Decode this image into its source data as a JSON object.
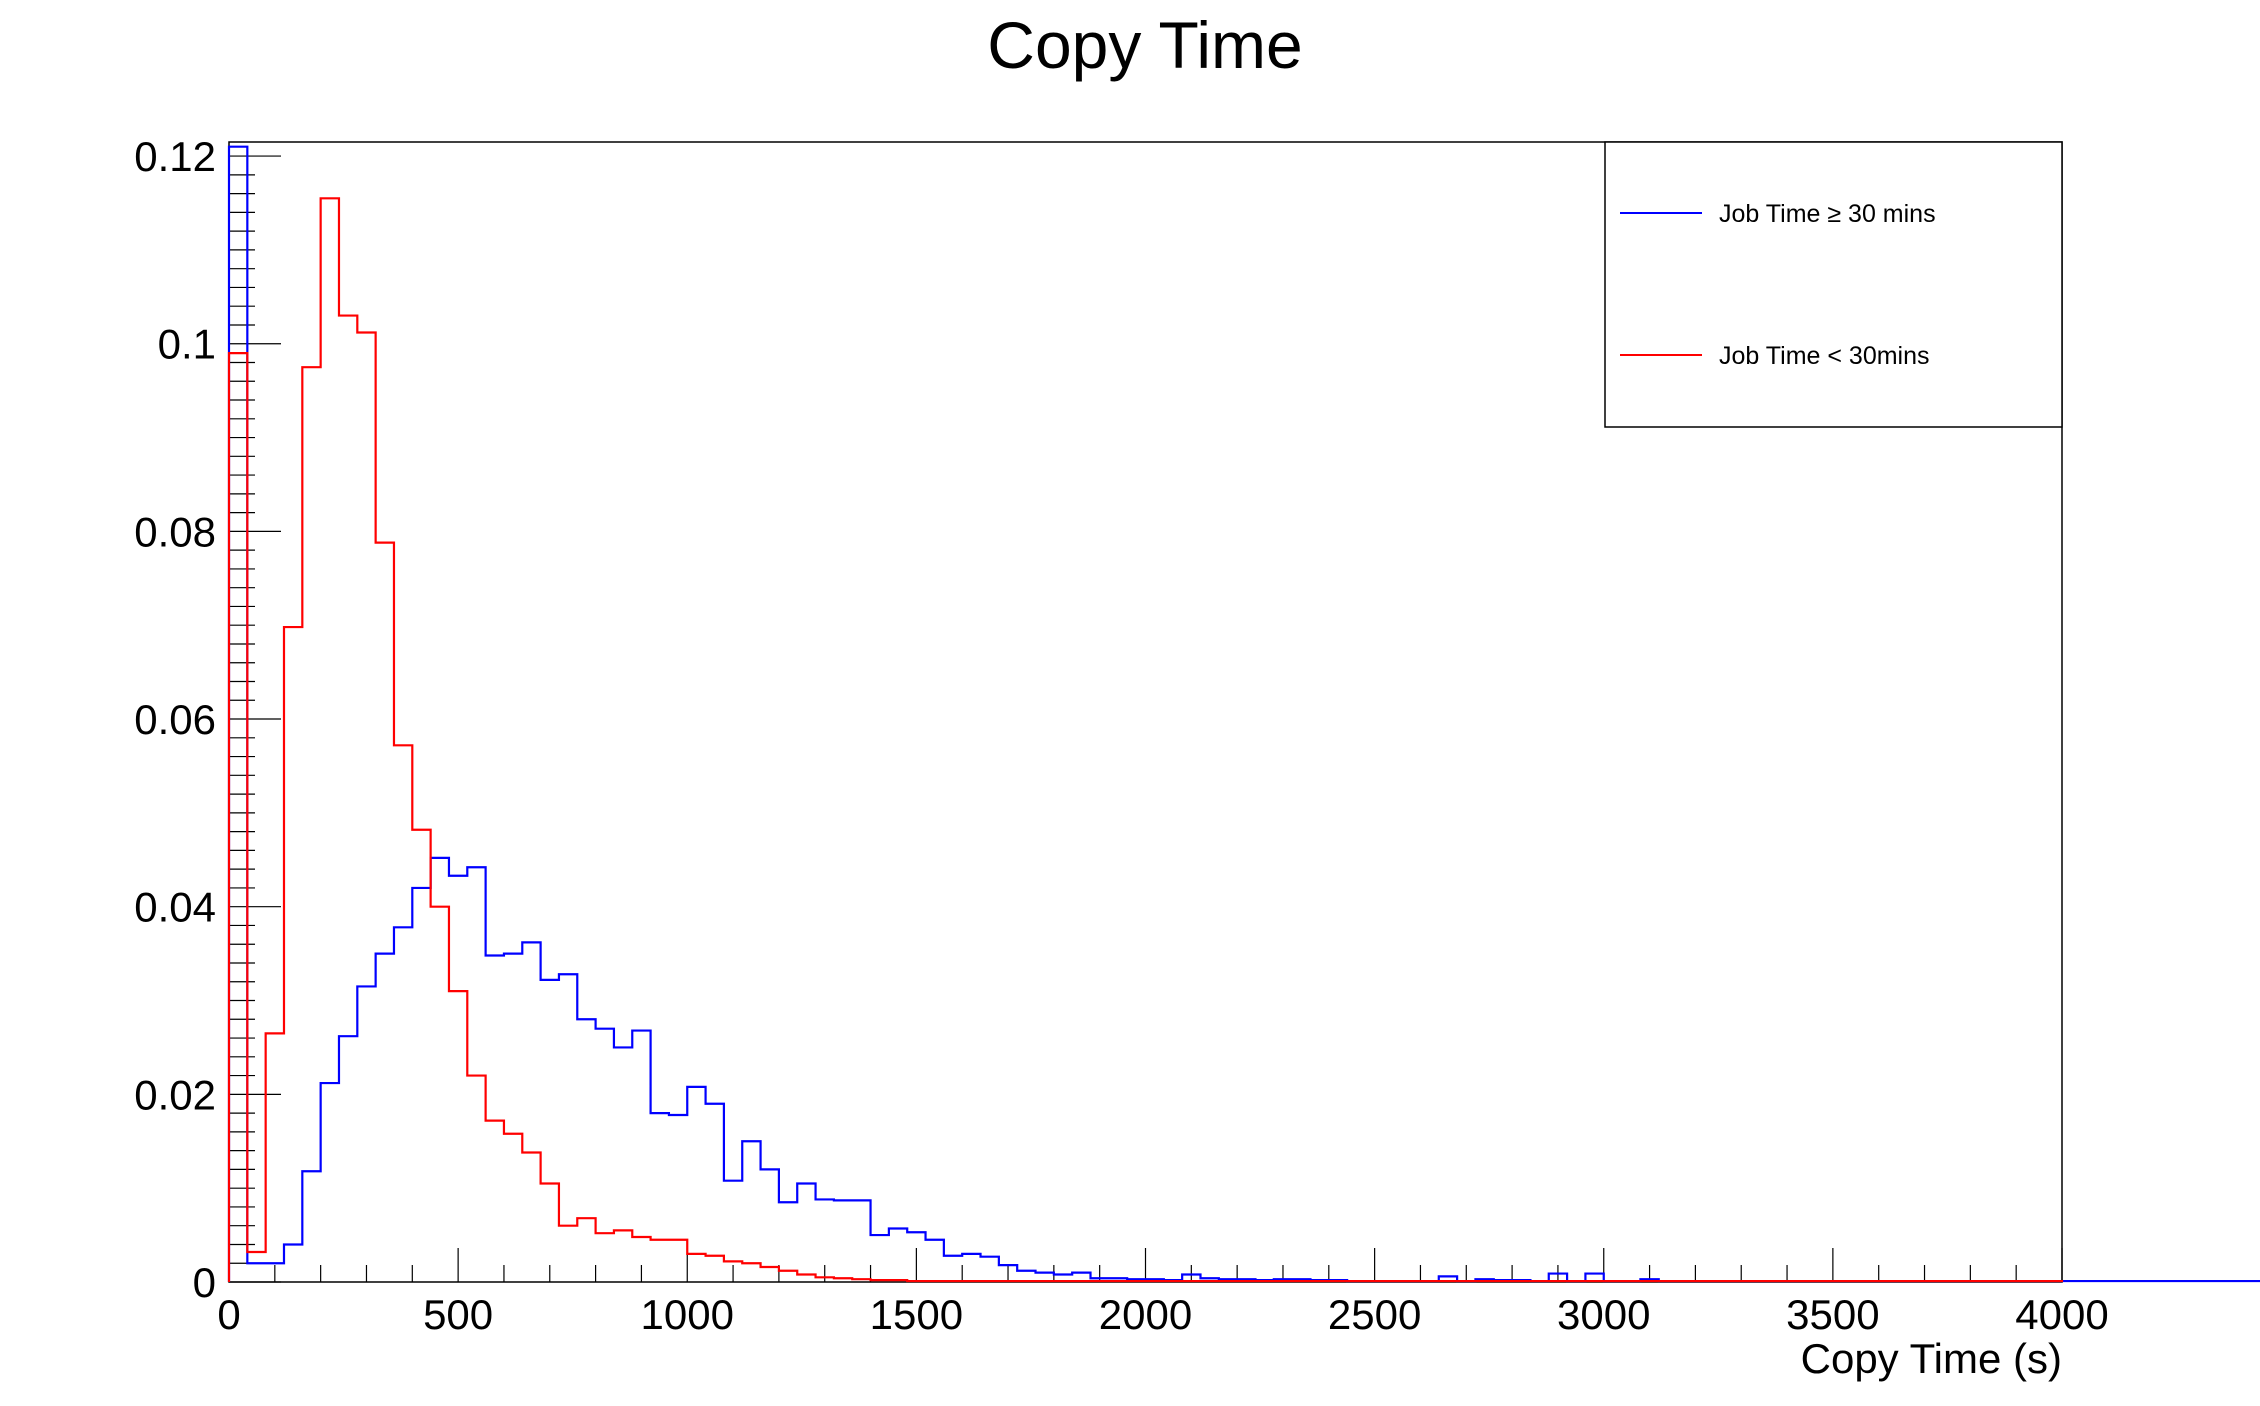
{
  "chart_data": {
    "type": "histogram",
    "title": "Copy Time",
    "xlabel": "Copy Time (s)",
    "ylabel": "",
    "xlim": [
      0,
      4000
    ],
    "ylim": [
      0,
      0.1215
    ],
    "bin_width": 40,
    "x_ticks": [
      0,
      500,
      1000,
      1500,
      2000,
      2500,
      3000,
      3500,
      4000
    ],
    "x_tick_labels": [
      "0",
      "500",
      "1000",
      "1500",
      "2000",
      "2500",
      "3000",
      "3500",
      "4000"
    ],
    "y_ticks": [
      0,
      0.02,
      0.04,
      0.06,
      0.08,
      0.1,
      0.12
    ],
    "y_tick_labels": [
      "0",
      "0.02",
      "0.04",
      "0.06",
      "0.08",
      "0.1",
      "0.12"
    ],
    "legend_position": "top-right",
    "series": [
      {
        "name": "Job Time ≥ 30 mins",
        "color": "#0000ff",
        "values": [
          0.121,
          0.002,
          0.002,
          0.004,
          0.0118,
          0.0212,
          0.0262,
          0.0315,
          0.035,
          0.0378,
          0.042,
          0.0452,
          0.0433,
          0.0442,
          0.0348,
          0.035,
          0.0362,
          0.0322,
          0.0328,
          0.028,
          0.027,
          0.025,
          0.0268,
          0.018,
          0.0178,
          0.0208,
          0.019,
          0.0108,
          0.015,
          0.012,
          0.0085,
          0.0105,
          0.0088,
          0.0087,
          0.0087,
          0.005,
          0.0057,
          0.0053,
          0.0045,
          0.0028,
          0.003,
          0.0027,
          0.0018,
          0.0012,
          0.001,
          0.0008,
          0.001,
          0.0004,
          0.0004,
          0.0003,
          0.0003,
          0.0002,
          0.0008,
          0.0004,
          0.0003,
          0.0003,
          0.0002,
          0.0003,
          0.0003,
          0.0002,
          0.0002,
          0.0001,
          0.0001,
          0.0001,
          0.0001,
          0.0001,
          0.0006,
          0.0001,
          0.0003,
          0.0002,
          0.0002,
          0.0001,
          0.0009,
          0.0001,
          0.0009,
          0.0001,
          0.0001,
          0.0003,
          0.0001,
          0.0001,
          0.0001,
          0.0001,
          0.0001,
          0.0001,
          0.0001,
          0.0001,
          0.0001,
          0.0001,
          0.0001,
          0.0001,
          0.0001,
          0.0001,
          0.0001,
          0.0001,
          0.0001,
          0.0001,
          0.0001,
          0.0001,
          0.0001,
          0.0001,
          0.0001,
          0.0001,
          0.0001,
          0.0001,
          0.0001,
          0.0001,
          0.0001,
          0.0001,
          0.0001,
          0.0001,
          0.0001,
          0.0001,
          0.0001,
          0.0001,
          0.0001,
          0.0001,
          0.0001,
          0.0001,
          0.0001,
          0.0001,
          0.0001,
          0.0001,
          0.0001,
          0.0001,
          0.0001,
          0.0001,
          0.0001,
          0.0001,
          0.0001,
          0.0001,
          0.0001,
          0.0001,
          0.0001,
          0.0001,
          0.0001,
          0.0001,
          0.0001,
          0.0001,
          0.0001,
          0.0001,
          0.0001,
          0.0001
        ]
      },
      {
        "name": "Job Time < 30mins",
        "color": "#ff0000",
        "values": [
          0.099,
          0.0032,
          0.0265,
          0.0698,
          0.0975,
          0.1155,
          0.103,
          0.1012,
          0.0788,
          0.0572,
          0.0482,
          0.04,
          0.031,
          0.022,
          0.0172,
          0.0158,
          0.0138,
          0.0105,
          0.006,
          0.0068,
          0.0052,
          0.0055,
          0.0048,
          0.0045,
          0.0045,
          0.003,
          0.0028,
          0.0022,
          0.002,
          0.0016,
          0.0012,
          0.0008,
          0.0005,
          0.0004,
          0.0003,
          0.0002,
          0.0002,
          0.0001,
          0.0001,
          0.0001,
          0.0001,
          0.0001,
          0.0001,
          0.0001,
          0.0001,
          0.0001,
          0.0001,
          0.0001,
          0.0001,
          0.0001,
          0.0001,
          0.0001,
          0.0001,
          0.0001,
          0.0001,
          0.0001,
          0.0001,
          0.0001,
          0.0001,
          0.0001,
          0.0001,
          0.0001,
          0.0001,
          0.0001,
          0.0001,
          0.0001,
          0.0001,
          0.0001,
          0.0001,
          0.0001,
          0.0001,
          0.0001,
          0.0001,
          0.0001,
          0.0001,
          0.0001,
          0.0001,
          0.0001,
          0.0001,
          0.0001,
          0.0001,
          0.0001,
          0.0001,
          0.0001,
          0.0001,
          0.0001,
          0.0001,
          0.0001,
          0.0001,
          0.0001,
          0.0001,
          0.0001,
          0.0001,
          0.0001,
          0.0001,
          0.0001,
          0.0001,
          0.0001,
          0.0001,
          0.0001
        ]
      }
    ]
  }
}
